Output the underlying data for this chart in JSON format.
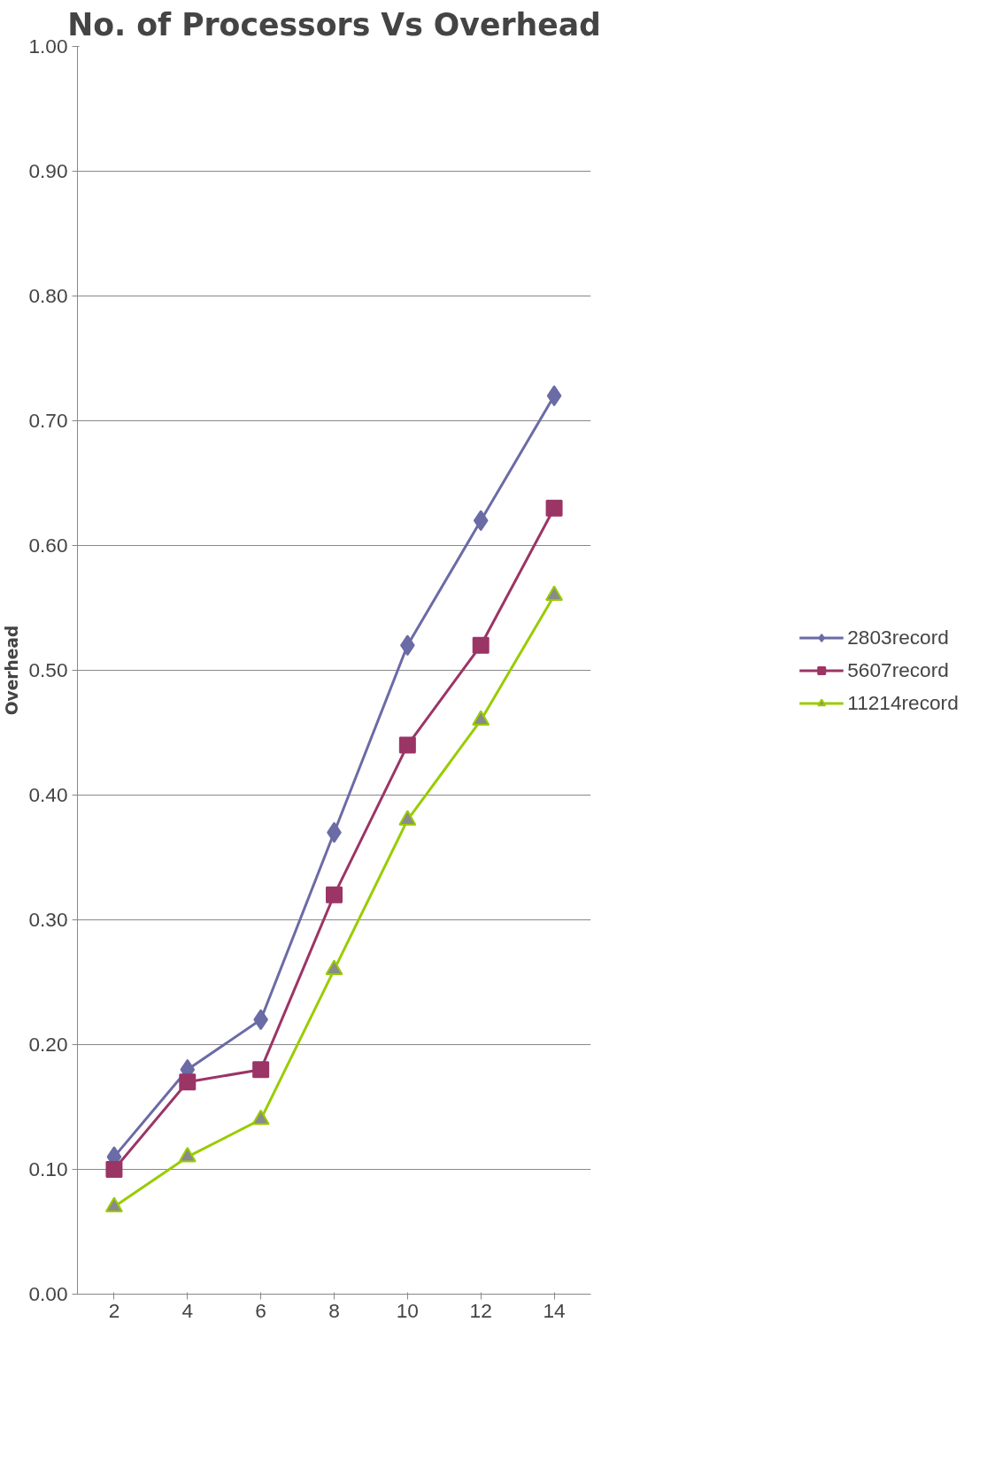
{
  "chart_data": {
    "type": "line",
    "title": "No. of Processors Vs Overhead",
    "ylabel": "Overhead",
    "categories": [
      "2",
      "4",
      "6",
      "8",
      "10",
      "12",
      "14"
    ],
    "series": [
      {
        "name": "2803record",
        "color": "#6b6ba6",
        "marker": "diamond",
        "values": [
          0.11,
          0.18,
          0.22,
          0.37,
          0.52,
          0.62,
          0.72
        ]
      },
      {
        "name": "5607record",
        "color": "#9b3566",
        "marker": "square",
        "values": [
          0.1,
          0.17,
          0.18,
          0.32,
          0.44,
          0.52,
          0.63
        ]
      },
      {
        "name": "11214record",
        "color": "#99cc00",
        "marker": "triangle",
        "values": [
          0.07,
          0.11,
          0.14,
          0.26,
          0.38,
          0.46,
          0.56
        ]
      }
    ],
    "ylim": [
      0,
      1
    ],
    "yticks": [
      {
        "value": 0,
        "label": "0.00"
      },
      {
        "value": 0.1,
        "label": "0.10"
      },
      {
        "value": 0.2,
        "label": "0.20"
      },
      {
        "value": 0.3,
        "label": "0.30"
      },
      {
        "value": 0.4,
        "label": "0.40"
      },
      {
        "value": 0.5,
        "label": "0.50"
      },
      {
        "value": 0.6,
        "label": "0.60"
      },
      {
        "value": 0.7,
        "label": "0.70"
      },
      {
        "value": 0.8,
        "label": "0.80"
      },
      {
        "value": 0.9,
        "label": "0.90"
      },
      {
        "value": 1,
        "label": "1.00"
      }
    ],
    "grid": "y",
    "legend": "right",
    "line_style": "solid"
  }
}
